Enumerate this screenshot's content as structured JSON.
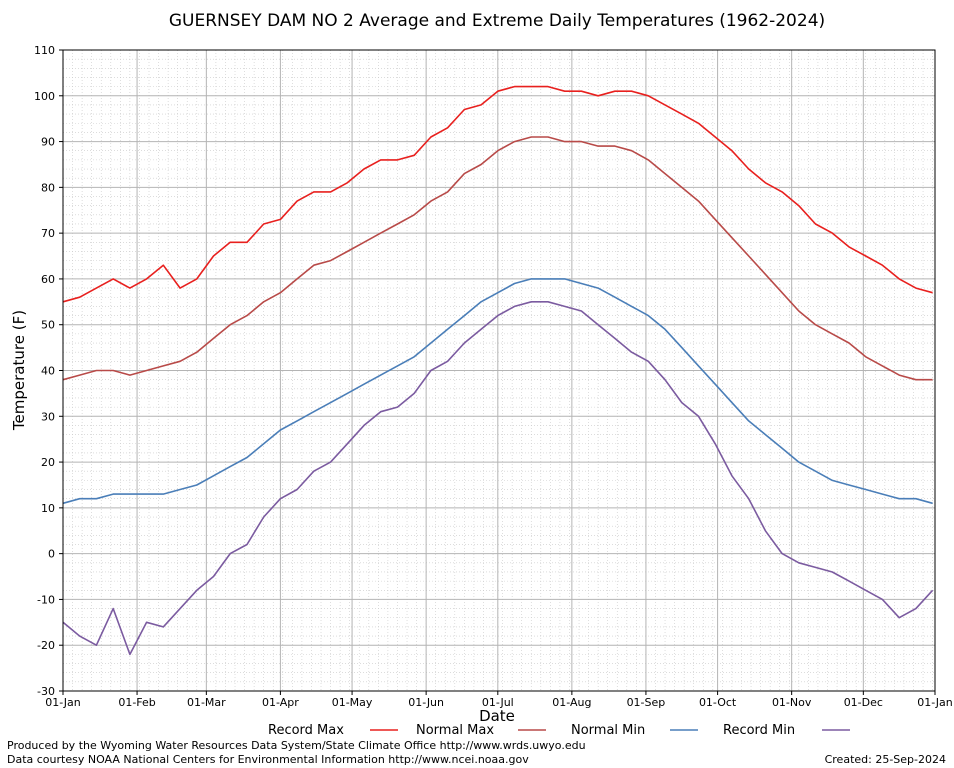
{
  "chart_data": {
    "type": "line",
    "title": "GUERNSEY DAM NO 2 Average and Extreme Daily Temperatures (1962-2024)",
    "xlabel": "Date",
    "ylabel": "Temperature (F)",
    "ylim": [
      -30,
      110
    ],
    "yticks": [
      -30,
      -20,
      -10,
      0,
      10,
      20,
      30,
      40,
      50,
      60,
      70,
      80,
      90,
      100,
      110
    ],
    "x_unit": "day of year",
    "xlim": [
      1,
      366
    ],
    "xticks": [
      {
        "label": "01-Jan",
        "day": 1
      },
      {
        "label": "01-Feb",
        "day": 32
      },
      {
        "label": "01-Mar",
        "day": 61
      },
      {
        "label": "01-Apr",
        "day": 92
      },
      {
        "label": "01-May",
        "day": 122
      },
      {
        "label": "01-Jun",
        "day": 153
      },
      {
        "label": "01-Jul",
        "day": 183
      },
      {
        "label": "01-Aug",
        "day": 214
      },
      {
        "label": "01-Sep",
        "day": 245
      },
      {
        "label": "01-Oct",
        "day": 275
      },
      {
        "label": "01-Nov",
        "day": 306
      },
      {
        "label": "01-Dec",
        "day": 336
      },
      {
        "label": "01-Jan",
        "day": 366
      }
    ],
    "grid": true,
    "legend_position": "bottom",
    "series": [
      {
        "name": "Record Max",
        "color": "#e8201e",
        "x": [
          1,
          8,
          15,
          22,
          29,
          36,
          43,
          50,
          57,
          64,
          71,
          78,
          85,
          92,
          99,
          106,
          113,
          120,
          127,
          134,
          141,
          148,
          155,
          162,
          169,
          176,
          183,
          190,
          197,
          204,
          211,
          218,
          225,
          232,
          239,
          246,
          253,
          260,
          267,
          274,
          281,
          288,
          295,
          302,
          309,
          316,
          323,
          330,
          337,
          344,
          351,
          358,
          365
        ],
        "y": [
          55,
          56,
          58,
          60,
          58,
          60,
          63,
          58,
          60,
          65,
          68,
          68,
          72,
          73,
          77,
          79,
          79,
          81,
          84,
          86,
          86,
          87,
          91,
          93,
          97,
          98,
          101,
          102,
          102,
          102,
          101,
          101,
          100,
          101,
          101,
          100,
          98,
          96,
          94,
          91,
          88,
          84,
          81,
          79,
          76,
          72,
          70,
          67,
          65,
          63,
          60,
          58,
          57
        ]
      },
      {
        "name": "Normal Max",
        "color": "#b84a48",
        "x": [
          1,
          8,
          15,
          22,
          29,
          36,
          43,
          50,
          57,
          64,
          71,
          78,
          85,
          92,
          99,
          106,
          113,
          120,
          127,
          134,
          141,
          148,
          155,
          162,
          169,
          176,
          183,
          190,
          197,
          204,
          211,
          218,
          225,
          232,
          239,
          246,
          253,
          260,
          267,
          274,
          281,
          288,
          295,
          302,
          309,
          316,
          323,
          330,
          337,
          344,
          351,
          358,
          365
        ],
        "y": [
          38,
          39,
          40,
          40,
          39,
          40,
          41,
          42,
          44,
          47,
          50,
          52,
          55,
          57,
          60,
          63,
          64,
          66,
          68,
          70,
          72,
          74,
          77,
          79,
          83,
          85,
          88,
          90,
          91,
          91,
          90,
          90,
          89,
          89,
          88,
          86,
          83,
          80,
          77,
          73,
          69,
          65,
          61,
          57,
          53,
          50,
          48,
          46,
          43,
          41,
          39,
          38,
          38
        ]
      },
      {
        "name": "Normal Min",
        "color": "#4a7eb8",
        "x": [
          1,
          8,
          15,
          22,
          29,
          36,
          43,
          50,
          57,
          64,
          71,
          78,
          85,
          92,
          99,
          106,
          113,
          120,
          127,
          134,
          141,
          148,
          155,
          162,
          169,
          176,
          183,
          190,
          197,
          204,
          211,
          218,
          225,
          232,
          239,
          246,
          253,
          260,
          267,
          274,
          281,
          288,
          295,
          302,
          309,
          316,
          323,
          330,
          337,
          344,
          351,
          358,
          365
        ],
        "y": [
          11,
          12,
          12,
          13,
          13,
          13,
          13,
          14,
          15,
          17,
          19,
          21,
          24,
          27,
          29,
          31,
          33,
          35,
          37,
          39,
          41,
          43,
          46,
          49,
          52,
          55,
          57,
          59,
          60,
          60,
          60,
          59,
          58,
          56,
          54,
          52,
          49,
          45,
          41,
          37,
          33,
          29,
          26,
          23,
          20,
          18,
          16,
          15,
          14,
          13,
          12,
          12,
          11
        ]
      },
      {
        "name": "Record Min",
        "color": "#7b5ba0",
        "x": [
          1,
          8,
          15,
          22,
          29,
          36,
          43,
          50,
          57,
          64,
          71,
          78,
          85,
          92,
          99,
          106,
          113,
          120,
          127,
          134,
          141,
          148,
          155,
          162,
          169,
          176,
          183,
          190,
          197,
          204,
          211,
          218,
          225,
          232,
          239,
          246,
          253,
          260,
          267,
          274,
          281,
          288,
          295,
          302,
          309,
          316,
          323,
          330,
          337,
          344,
          351,
          358,
          365
        ],
        "y": [
          -15,
          -18,
          -20,
          -12,
          -22,
          -15,
          -16,
          -12,
          -8,
          -5,
          0,
          2,
          8,
          12,
          14,
          18,
          20,
          24,
          28,
          31,
          32,
          35,
          40,
          42,
          46,
          49,
          52,
          54,
          55,
          55,
          54,
          53,
          50,
          47,
          44,
          42,
          38,
          33,
          30,
          24,
          17,
          12,
          5,
          0,
          -2,
          -3,
          -4,
          -6,
          -8,
          -10,
          -14,
          -12,
          -8
        ]
      }
    ]
  },
  "legend": [
    {
      "label": "Record Max",
      "color": "#e8201e"
    },
    {
      "label": "Normal Max",
      "color": "#b84a48"
    },
    {
      "label": "Normal Min",
      "color": "#4a7eb8"
    },
    {
      "label": "Record Min",
      "color": "#7b5ba0"
    }
  ],
  "footer": {
    "produced_by": "Produced by the Wyoming Water Resources Data System/State Climate Office http://www.wrds.uwyo.edu",
    "courtesy": "Data courtesy NOAA National Centers for Environmental Information http://www.ncei.noaa.gov",
    "created": "Created:  25-Sep-2024"
  }
}
